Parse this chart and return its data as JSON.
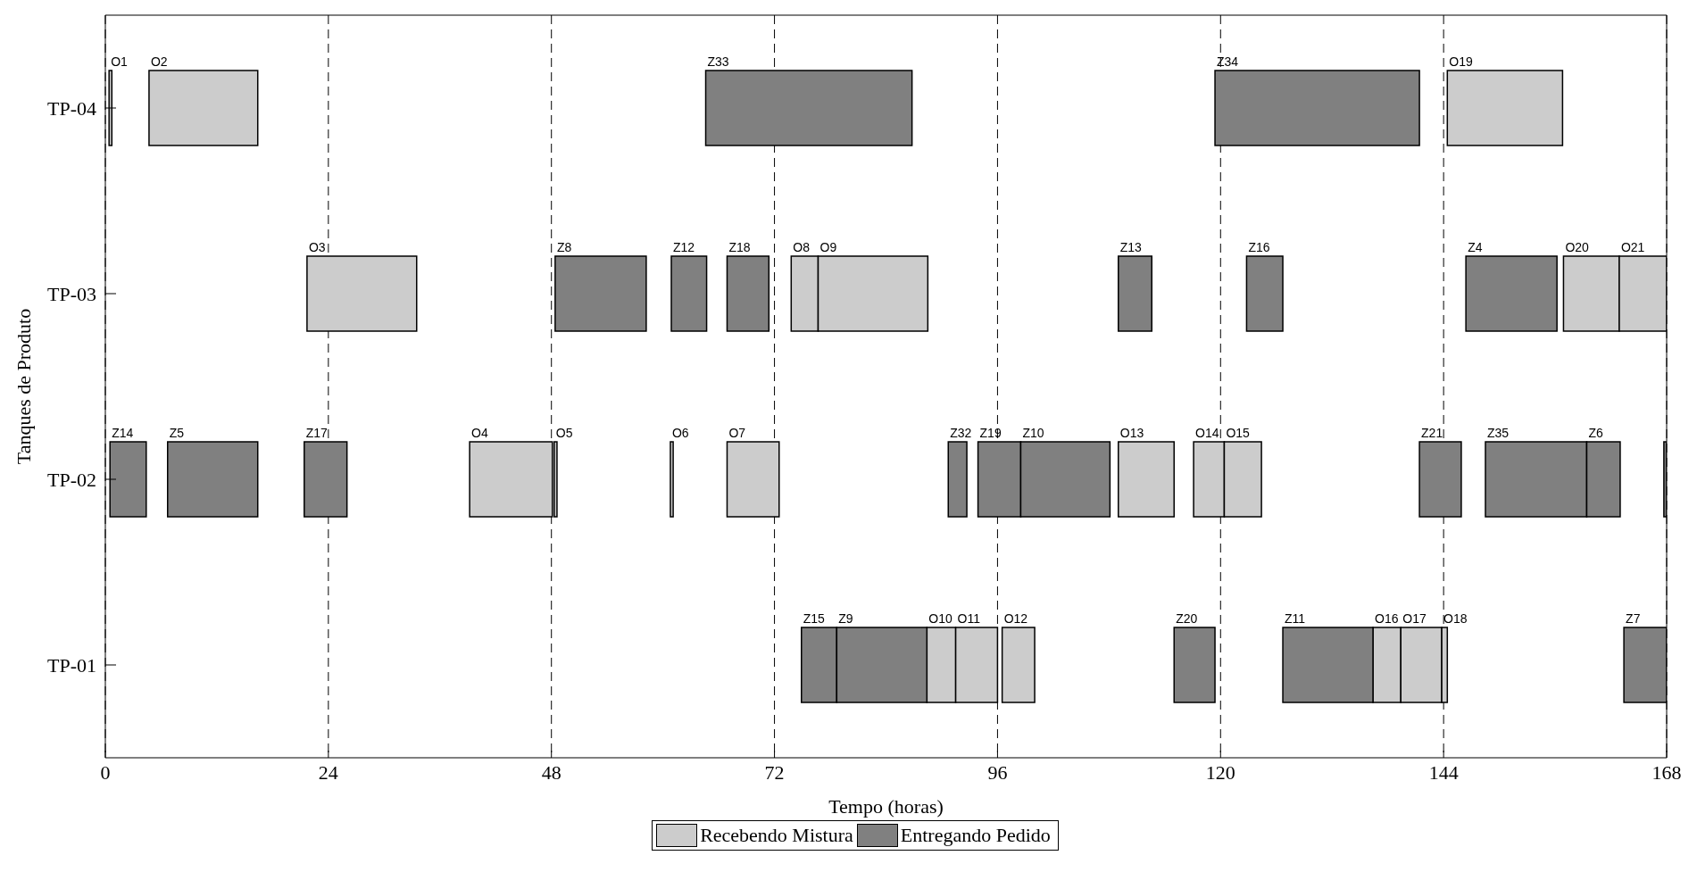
{
  "chart_data": {
    "type": "bar",
    "orientation": "horizontal",
    "xlabel": "Tempo (horas)",
    "ylabel": "Tanques de Produto",
    "categories": [
      "TP-04",
      "TP-03",
      "TP-02",
      "TP-01"
    ],
    "xlim": [
      0,
      168
    ],
    "xticks": [
      0,
      24,
      48,
      72,
      96,
      120,
      144,
      168
    ],
    "grid": "x",
    "legend": "bottom",
    "series": [
      {
        "name": "Recebendo Mistura",
        "color": "#cccccc",
        "base": [
          0.4,
          21.7,
          39.2,
          88.4
        ],
        "values": [
          0.3,
          11.8,
          8.9,
          3.1
        ],
        "value_labels": [
          "O1",
          "O3",
          "O4",
          "O10"
        ]
      },
      {
        "color": "#cccccc",
        "base": [
          4.7,
          73.8,
          48.3,
          91.5
        ],
        "values": [
          11.7,
          2.9,
          0.3,
          4.5
        ],
        "value_labels": [
          "O2",
          "O8",
          "O5",
          "O11"
        ]
      },
      {
        "color": "#cccccc",
        "base": [
          144.4,
          76.7,
          60.8,
          96.5
        ],
        "values": [
          12.4,
          11.8,
          0.3,
          3.5
        ],
        "value_labels": [
          "O19",
          "O9",
          "O6",
          "O12"
        ]
      },
      {
        "color": "#cccccc",
        "base": [
          null,
          156.9,
          66.9,
          136.4
        ],
        "values": [
          null,
          6,
          5.6,
          3
        ],
        "value_labels": [
          null,
          "O20",
          "O7",
          "O16"
        ]
      },
      {
        "color": "#cccccc",
        "base": [
          null,
          162.9,
          109,
          139.4
        ],
        "values": [
          null,
          5.1,
          6,
          4.4
        ],
        "value_labels": [
          null,
          "O21",
          "O13",
          "O17"
        ]
      },
      {
        "color": "#cccccc",
        "base": [
          null,
          null,
          117.1,
          143.8
        ],
        "values": [
          null,
          null,
          3.3,
          0.6
        ],
        "value_labels": [
          null,
          null,
          "O14",
          "O18"
        ]
      },
      {
        "color": "#cccccc",
        "base": [
          null,
          null,
          120.4,
          null
        ],
        "values": [
          null,
          null,
          4,
          null
        ],
        "value_labels": [
          null,
          null,
          "O15",
          null
        ]
      },
      {
        "name": "Entregando Pedido",
        "color": "#808080",
        "base": [
          64.6,
          48.4,
          0.5,
          74.9
        ],
        "values": [
          22.2,
          9.8,
          3.9,
          3.8
        ],
        "value_labels": [
          "Z33",
          "Z8",
          "Z14",
          "Z15"
        ]
      },
      {
        "color": "#808080",
        "base": [
          119.4,
          60.9,
          6.7,
          78.7
        ],
        "values": [
          22,
          3.8,
          9.7,
          9.7
        ],
        "value_labels": [
          "Z34",
          "Z12",
          "Z5",
          "Z9"
        ]
      },
      {
        "color": "#808080",
        "base": [
          null,
          66.9,
          21.4,
          115
        ],
        "values": [
          null,
          4.5,
          4.6,
          4.4
        ],
        "value_labels": [
          null,
          "Z18",
          "Z17",
          "Z20"
        ]
      },
      {
        "color": "#808080",
        "base": [
          null,
          109,
          90.7,
          126.7
        ],
        "values": [
          null,
          3.6,
          2,
          9.7
        ],
        "value_labels": [
          null,
          "Z13",
          "Z32",
          "Z11"
        ]
      },
      {
        "color": "#808080",
        "base": [
          null,
          122.8,
          93.9,
          163.4
        ],
        "values": [
          null,
          3.9,
          4.6,
          4.6
        ],
        "value_labels": [
          null,
          "Z16",
          "Z19",
          "Z7"
        ]
      },
      {
        "color": "#808080",
        "base": [
          null,
          146.4,
          98.5,
          null
        ],
        "values": [
          null,
          9.8,
          9.6,
          null
        ],
        "value_labels": [
          null,
          "Z4",
          "Z10",
          null
        ]
      },
      {
        "color": "#808080",
        "base": [
          null,
          null,
          141.4,
          null
        ],
        "values": [
          null,
          null,
          4.5,
          null
        ],
        "value_labels": [
          null,
          null,
          "Z21",
          null
        ]
      },
      {
        "color": "#808080",
        "base": [
          null,
          null,
          148.5,
          null
        ],
        "values": [
          null,
          null,
          10.9,
          null
        ],
        "value_labels": [
          null,
          null,
          "Z35",
          null
        ]
      },
      {
        "color": "#808080",
        "base": [
          null,
          null,
          159.4,
          null
        ],
        "values": [
          null,
          null,
          3.6,
          null
        ],
        "value_labels": [
          null,
          null,
          "Z6",
          null
        ]
      },
      {
        "color": "#808080",
        "base": [
          null,
          null,
          167.7,
          null
        ],
        "values": [
          null,
          null,
          0.3,
          null
        ],
        "value_labels": [
          null,
          null,
          null,
          null
        ]
      }
    ]
  }
}
